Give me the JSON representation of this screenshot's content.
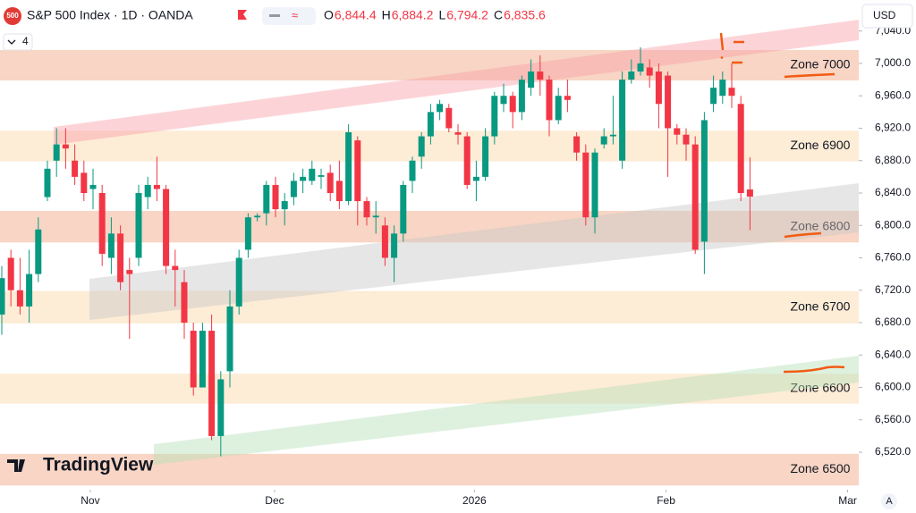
{
  "header": {
    "logo": "500",
    "symbol": "S&P 500 Index · 1D · OANDA",
    "ohlc": [
      {
        "key": "O",
        "value": "6,844.4"
      },
      {
        "key": "H",
        "value": "6,884.2"
      },
      {
        "key": "L",
        "value": "6,794.2"
      },
      {
        "key": "C",
        "value": "6,835.6"
      }
    ],
    "indicators": "4",
    "currency": "USD",
    "brand": "TradingView",
    "auto": "A"
  },
  "chart_data": {
    "type": "candlestick",
    "up_color": "#089981",
    "down_color": "#f23645",
    "open": [
      6690,
      6760,
      6720,
      6700,
      6740,
      6835,
      6880,
      6900,
      6880,
      6865,
      6845,
      6840,
      6760,
      6790,
      6745,
      6760,
      6835,
      6850,
      6845,
      6750,
      6730,
      6670,
      6600,
      6670,
      6540,
      6620,
      6700,
      6770,
      6810,
      6815,
      6850,
      6820,
      6835,
      6855,
      6855,
      6860,
      6865,
      6855,
      6830,
      6905,
      6830,
      6810,
      6800,
      6760,
      6790,
      6855,
      6885,
      6910,
      6940,
      6945,
      6915,
      6910,
      6855,
      6860,
      6910,
      6950,
      6960,
      6940,
      6970,
      6990,
      6980,
      6930,
      6960,
      6910,
      6890,
      6810,
      6900,
      6910,
      6880,
      6980,
      6990,
      6995,
      6990,
      6985,
      6920,
      6912,
      6900,
      6780,
      6950,
      6960,
      6970,
      6950,
      6844.4
    ],
    "high": [
      6750,
      6770,
      6760,
      6770,
      6810,
      6880,
      6920,
      6920,
      6900,
      6880,
      6870,
      6850,
      6810,
      6800,
      6760,
      6850,
      6860,
      6885,
      6850,
      6770,
      6745,
      6680,
      6680,
      6690,
      6620,
      6720,
      6770,
      6815,
      6815,
      6855,
      6860,
      6840,
      6865,
      6870,
      6880,
      6870,
      6875,
      6880,
      6925,
      6910,
      6835,
      6830,
      6810,
      6800,
      6855,
      6885,
      6915,
      6950,
      6955,
      6950,
      6925,
      6915,
      6880,
      6920,
      6965,
      6975,
      6965,
      6985,
      7005,
      7010,
      6985,
      6970,
      6980,
      6915,
      6900,
      6895,
      6920,
      6960,
      6990,
      7005,
      7020,
      7005,
      7000,
      6990,
      6925,
      6920,
      6910,
      6940,
      6985,
      6990,
      7000,
      6960,
      6884.2
    ],
    "low": [
      6665,
      6700,
      6690,
      6680,
      6730,
      6830,
      6860,
      6870,
      6850,
      6830,
      6820,
      6750,
      6740,
      6720,
      6660,
      6750,
      6820,
      6830,
      6740,
      6700,
      6660,
      6590,
      6600,
      6535,
      6515,
      6600,
      6690,
      6760,
      6805,
      6800,
      6810,
      6800,
      6825,
      6840,
      6850,
      6845,
      6830,
      6820,
      6825,
      6800,
      6800,
      6790,
      6750,
      6730,
      6780,
      6840,
      6870,
      6900,
      6930,
      6915,
      6900,
      6845,
      6830,
      6855,
      6900,
      6940,
      6920,
      6930,
      6960,
      6960,
      6910,
      6925,
      6940,
      6880,
      6800,
      6790,
      6895,
      6900,
      6870,
      6975,
      6985,
      6970,
      6920,
      6860,
      6900,
      6880,
      6765,
      6740,
      6940,
      6950,
      6945,
      6830,
      6794.2
    ],
    "close": [
      6735,
      6720,
      6700,
      6740,
      6795,
      6870,
      6900,
      6895,
      6860,
      6840,
      6850,
      6765,
      6790,
      6730,
      6740,
      6840,
      6850,
      6845,
      6750,
      6745,
      6680,
      6600,
      6670,
      6540,
      6610,
      6700,
      6760,
      6810,
      6812,
      6850,
      6820,
      6830,
      6855,
      6860,
      6870,
      6862,
      6840,
      6830,
      6915,
      6830,
      6810,
      6812,
      6760,
      6790,
      6850,
      6880,
      6910,
      6940,
      6950,
      6920,
      6912,
      6850,
      6860,
      6910,
      6960,
      6960,
      6940,
      6980,
      6990,
      6980,
      6930,
      6960,
      6955,
      6890,
      6810,
      6890,
      6910,
      6912,
      6980,
      6990,
      7000,
      6985,
      6950,
      6920,
      6912,
      6900,
      6770,
      6930,
      6970,
      6980,
      6960,
      6840,
      6835.6
    ],
    "xticks": [
      {
        "value": 9.7,
        "label": "Nov"
      },
      {
        "value": 29.9,
        "label": "Dec"
      },
      {
        "value": 51.8,
        "label": "2026"
      },
      {
        "value": 72.8,
        "label": "Feb"
      },
      {
        "value": 92.7,
        "label": "Mar"
      }
    ],
    "ylim": [
      6473.7,
      7078.3
    ],
    "yticks": [
      {
        "value": 6520,
        "label": "6,520.0"
      },
      {
        "value": 6560,
        "label": "6,560.0"
      },
      {
        "value": 6600,
        "label": "6,600.0"
      },
      {
        "value": 6640,
        "label": "6,640.0"
      },
      {
        "value": 6680,
        "label": "6,680.0"
      },
      {
        "value": 6720,
        "label": "6,720.0"
      },
      {
        "value": 6760,
        "label": "6,760.0"
      },
      {
        "value": 6800,
        "label": "6,800.0"
      },
      {
        "value": 6840,
        "label": "6,840.0"
      },
      {
        "value": 6880,
        "label": "6,880.0"
      },
      {
        "value": 6920,
        "label": "6,920.0"
      },
      {
        "value": 6960,
        "label": "6,960.0"
      },
      {
        "value": 7000,
        "label": "7,000.0"
      },
      {
        "value": 7040,
        "label": "7,040.0"
      }
    ],
    "zones": [
      {
        "label": "Zone 7000",
        "from": 6979,
        "to": 7016.5,
        "color": "#f8d5c4"
      },
      {
        "label": "Zone 6900",
        "from": 6879,
        "to": 6917,
        "color": "#fdecd6"
      },
      {
        "label": "Zone 6800",
        "from": 6779,
        "to": 6818,
        "color": "#f8d5c4"
      },
      {
        "label": "Zone 6700",
        "from": 6679,
        "to": 6719,
        "color": "#fdecd6"
      },
      {
        "label": "Zone 6600",
        "from": 6580,
        "to": 6617,
        "color": "#fdecd6"
      },
      {
        "label": "Zone 6500",
        "from": 6479,
        "to": 6518,
        "color": "#f8d5c4"
      }
    ]
  }
}
